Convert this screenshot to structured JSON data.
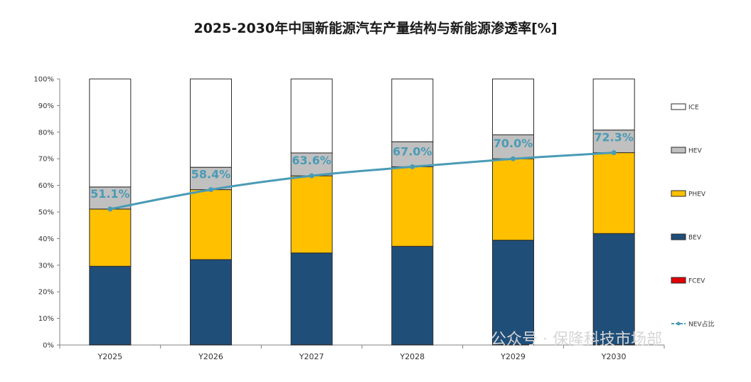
{
  "title": "2025-2030年中国新能源汽车产量结构与新能源渗透率[%]",
  "watermark": "公众号 · 保隆科技市场部",
  "colors": {
    "ICE": "#ffffff",
    "HEV": "#c0c0c0",
    "PHEV": "#ffc000",
    "BEV": "#1f4e79",
    "FCEV": "#e00000",
    "NEV": "#4a9bb5"
  },
  "chart_data": {
    "type": "bar",
    "stacked": true,
    "title": "2025-2030年中国新能源汽车产量结构与新能源渗透率[%]",
    "categories": [
      "Y2025",
      "Y2026",
      "Y2027",
      "Y2028",
      "Y2029",
      "Y2030"
    ],
    "ylim": [
      0,
      100
    ],
    "yticks": [
      "0%",
      "10%",
      "20%",
      "30%",
      "40%",
      "50%",
      "60%",
      "70%",
      "80%",
      "90%",
      "100%"
    ],
    "series": [
      {
        "name": "FCEV",
        "values": [
          0.1,
          0.1,
          0.1,
          0.1,
          0.1,
          0.1
        ]
      },
      {
        "name": "BEV",
        "values": [
          29.5,
          32.0,
          34.5,
          37.0,
          39.3,
          41.8
        ]
      },
      {
        "name": "PHEV",
        "values": [
          21.5,
          26.3,
          29.0,
          29.9,
          30.6,
          30.4
        ]
      },
      {
        "name": "HEV",
        "values": [
          8.3,
          8.4,
          8.6,
          9.4,
          9.0,
          8.5
        ]
      },
      {
        "name": "ICE",
        "values": [
          40.6,
          33.2,
          27.8,
          23.6,
          21.0,
          19.2
        ]
      }
    ],
    "line": {
      "name": "NEV占比",
      "values": [
        51.1,
        58.4,
        63.6,
        67.0,
        70.0,
        72.3
      ],
      "labels": [
        "51.1%",
        "58.4%",
        "63.6%",
        "67.0%",
        "70.0%",
        "72.3%"
      ]
    },
    "legend": {
      "position": "right",
      "items": [
        {
          "name": "ICE",
          "kind": "box"
        },
        {
          "name": "HEV",
          "kind": "box"
        },
        {
          "name": "PHEV",
          "kind": "box"
        },
        {
          "name": "BEV",
          "kind": "box"
        },
        {
          "name": "FCEV",
          "kind": "box"
        },
        {
          "name": "NEV占比",
          "kind": "line"
        }
      ]
    }
  }
}
